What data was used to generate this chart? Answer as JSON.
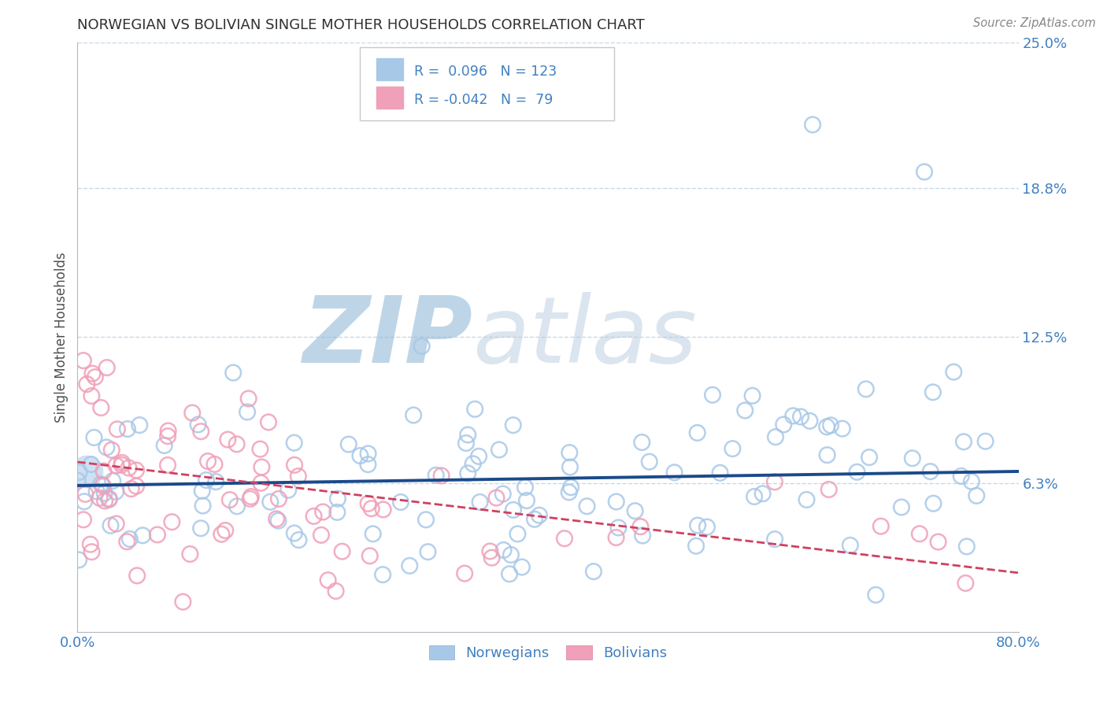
{
  "title": "NORWEGIAN VS BOLIVIAN SINGLE MOTHER HOUSEHOLDS CORRELATION CHART",
  "source_text": "Source: ZipAtlas.com",
  "ylabel": "Single Mother Households",
  "xlim": [
    0.0,
    0.8
  ],
  "ylim": [
    0.0,
    0.25
  ],
  "ytick_labels": [
    "6.3%",
    "12.5%",
    "18.8%",
    "25.0%"
  ],
  "ytick_values": [
    0.063,
    0.125,
    0.188,
    0.25
  ],
  "watermark": "ZIPatlas",
  "legend_norwegian": "Norwegians",
  "legend_bolivian": "Bolivians",
  "R_norwegian": 0.096,
  "N_norwegian": 123,
  "R_bolivian": -0.042,
  "N_bolivian": 79,
  "norwegian_color": "#a8c8e8",
  "bolivian_color": "#f0a0b8",
  "trend_norwegian_color": "#1a4a8a",
  "trend_bolivian_color": "#d04060",
  "title_color": "#303030",
  "axis_label_color": "#505050",
  "tick_color": "#4080c0",
  "grid_color": "#c8d8e8",
  "watermark_color": "#ccd8e8"
}
